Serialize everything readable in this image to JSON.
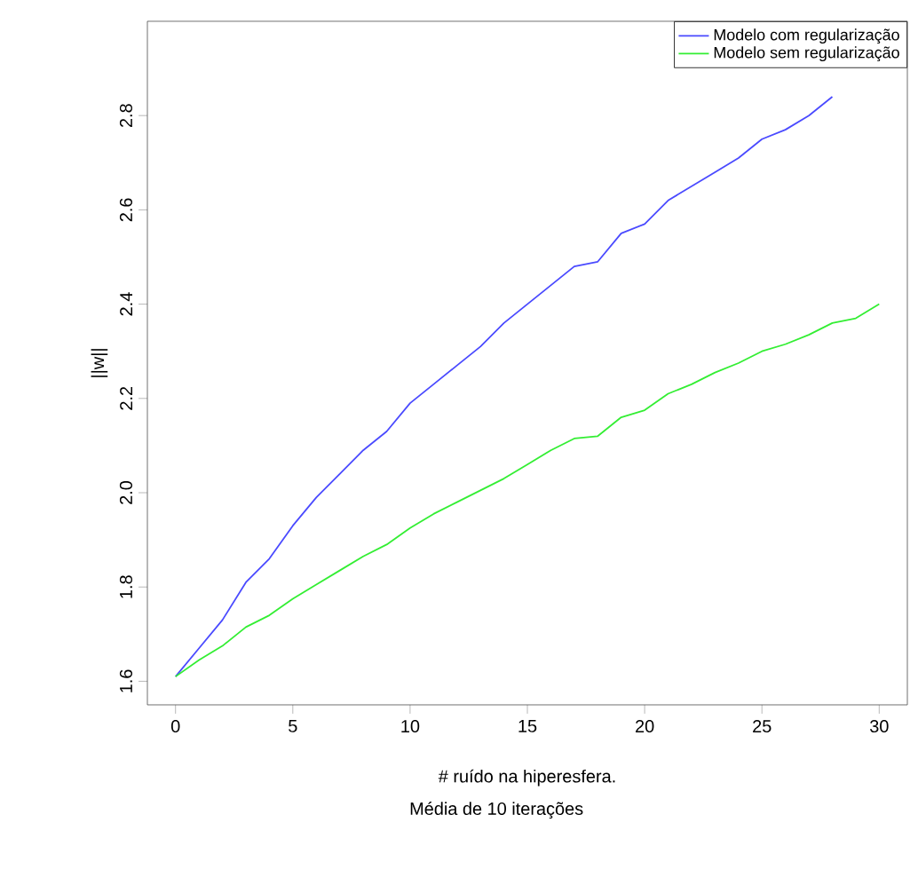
{
  "chart_data": {
    "type": "line",
    "xlabel": "# ruído na hiperesfera.",
    "ylabel": "||w||",
    "annotations": [
      "Média de 10 iterações"
    ],
    "x": [
      0,
      1,
      2,
      3,
      4,
      5,
      6,
      7,
      8,
      9,
      10,
      11,
      12,
      13,
      14,
      15,
      16,
      17,
      18,
      19,
      20,
      21,
      22,
      23,
      24,
      25,
      26,
      27,
      28,
      29,
      30
    ],
    "series": [
      {
        "name": "Modelo com regularização",
        "color": "#4a4aff",
        "values": [
          1.61,
          1.67,
          1.73,
          1.81,
          1.86,
          1.93,
          1.99,
          2.04,
          2.09,
          2.13,
          2.19,
          2.23,
          2.27,
          2.31,
          2.36,
          2.4,
          2.44,
          2.48,
          2.49,
          2.55,
          2.57,
          2.62,
          2.65,
          2.68,
          2.71,
          2.75,
          2.77,
          2.8,
          2.84,
          null,
          null
        ]
      },
      {
        "name": "Modelo sem regularização",
        "color": "#33ee33",
        "values": [
          1.61,
          1.645,
          1.675,
          1.715,
          1.74,
          1.775,
          1.805,
          1.835,
          1.865,
          1.89,
          1.925,
          1.955,
          1.98,
          2.005,
          2.03,
          2.06,
          2.09,
          2.115,
          2.12,
          2.16,
          2.175,
          2.21,
          2.23,
          2.255,
          2.275,
          2.3,
          2.315,
          2.335,
          2.36,
          2.37,
          2.4
        ]
      }
    ],
    "xlim": [
      -1.2,
      31.2
    ],
    "ylim": [
      1.55,
      3.0
    ],
    "xticks": [
      0,
      5,
      10,
      15,
      20,
      25,
      30
    ],
    "yticks": [
      {
        "value": 1.6,
        "label": "1.6"
      },
      {
        "value": 1.8,
        "label": "1.8"
      },
      {
        "value": 2.0,
        "label": "2.0"
      },
      {
        "value": 2.2,
        "label": "2.2"
      },
      {
        "value": 2.4,
        "label": "2.4"
      },
      {
        "value": 2.6,
        "label": "2.6"
      },
      {
        "value": 2.8,
        "label": "2.8"
      }
    ],
    "legend": "top right",
    "grid": false,
    "marker": "none",
    "line_style": "solid"
  }
}
